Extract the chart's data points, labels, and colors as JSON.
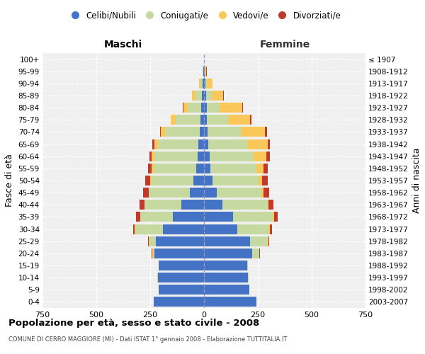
{
  "age_groups": [
    "0-4",
    "5-9",
    "10-14",
    "15-19",
    "20-24",
    "25-29",
    "30-34",
    "35-39",
    "40-44",
    "45-49",
    "50-54",
    "55-59",
    "60-64",
    "65-69",
    "70-74",
    "75-79",
    "80-84",
    "85-89",
    "90-94",
    "95-99",
    "100+"
  ],
  "birth_years": [
    "2003-2007",
    "1998-2002",
    "1993-1997",
    "1988-1992",
    "1983-1987",
    "1978-1982",
    "1973-1977",
    "1968-1972",
    "1963-1967",
    "1958-1962",
    "1953-1957",
    "1948-1952",
    "1943-1947",
    "1938-1942",
    "1933-1937",
    "1928-1932",
    "1923-1927",
    "1918-1922",
    "1913-1917",
    "1908-1912",
    "≤ 1907"
  ],
  "male_celibi": [
    235,
    210,
    215,
    210,
    230,
    225,
    190,
    145,
    105,
    65,
    50,
    35,
    30,
    25,
    20,
    15,
    12,
    10,
    5,
    2,
    0
  ],
  "male_coniugati": [
    0,
    0,
    2,
    2,
    8,
    28,
    128,
    150,
    170,
    190,
    195,
    200,
    200,
    188,
    160,
    118,
    65,
    30,
    12,
    3,
    0
  ],
  "male_vedovi": [
    0,
    0,
    0,
    0,
    2,
    3,
    3,
    2,
    2,
    3,
    5,
    8,
    12,
    18,
    20,
    20,
    20,
    15,
    5,
    2,
    0
  ],
  "male_divorziati": [
    0,
    0,
    0,
    0,
    2,
    5,
    8,
    18,
    22,
    25,
    22,
    18,
    10,
    8,
    5,
    3,
    2,
    0,
    0,
    0,
    0
  ],
  "fem_nubili": [
    245,
    210,
    205,
    200,
    225,
    215,
    155,
    135,
    85,
    58,
    38,
    30,
    25,
    20,
    15,
    12,
    12,
    10,
    5,
    2,
    0
  ],
  "fem_coniugate": [
    0,
    0,
    2,
    5,
    30,
    80,
    145,
    185,
    210,
    210,
    215,
    215,
    205,
    180,
    155,
    100,
    60,
    25,
    8,
    3,
    0
  ],
  "fem_vedove": [
    0,
    0,
    0,
    0,
    2,
    3,
    5,
    5,
    5,
    8,
    18,
    30,
    60,
    95,
    112,
    102,
    105,
    55,
    25,
    5,
    0
  ],
  "fem_divorziate": [
    0,
    0,
    0,
    0,
    2,
    5,
    10,
    18,
    22,
    25,
    25,
    20,
    15,
    10,
    10,
    5,
    5,
    3,
    2,
    2,
    0
  ],
  "col_celibi": "#4472C4",
  "col_coniugati": "#C5D9A0",
  "col_vedovi": "#FAC858",
  "col_divorziati": "#C0392B",
  "xlim": 750,
  "title": "Popolazione per età, sesso e stato civile - 2008",
  "subtitle": "COMUNE DI CERRO MAGGIORE (MI) - Dati ISTAT 1° gennaio 2008 - Elaborazione TUTTITALIA.IT",
  "ylabel": "Fasce di età",
  "ylabel_right": "Anni di nascita",
  "label_maschi": "Maschi",
  "label_femmine": "Femmine",
  "legend_labels": [
    "Celibi/Nubili",
    "Coniugati/e",
    "Vedovi/e",
    "Divorziati/e"
  ],
  "bg_color": "#f0f0f0",
  "grid_color": "#ffffff",
  "center_line_color": "#9999bb"
}
